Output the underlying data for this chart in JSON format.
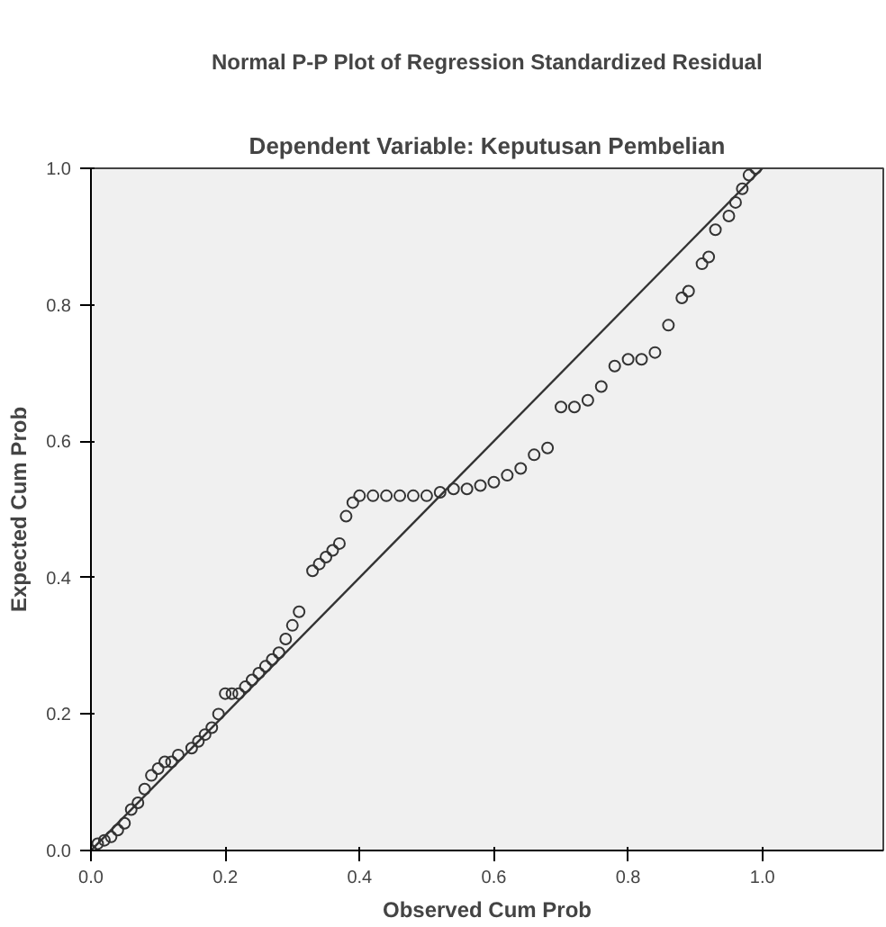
{
  "chart_data": {
    "type": "scatter",
    "title": "Normal P-P Plot of Regression Standardized Residual",
    "subtitle": "Dependent Variable: Keputusan Pembelian",
    "xlabel": "Observed Cum Prob",
    "ylabel": "Expected Cum Prob",
    "xlim": [
      0,
      1.18
    ],
    "ylim": [
      0,
      1
    ],
    "xticks": [
      {
        "value": 0,
        "label": "0.0"
      },
      {
        "value": 0.2,
        "label": "0.2"
      },
      {
        "value": 0.4,
        "label": "0.4"
      },
      {
        "value": 0.6,
        "label": "0.6"
      },
      {
        "value": 0.8,
        "label": "0.8"
      },
      {
        "value": 1,
        "label": "1.0"
      }
    ],
    "yticks": [
      {
        "value": 0,
        "label": "0.0"
      },
      {
        "value": 0.2,
        "label": "0.2"
      },
      {
        "value": 0.4,
        "label": "0.4"
      },
      {
        "value": 0.6,
        "label": "0.6"
      },
      {
        "value": 0.8,
        "label": "0.8"
      },
      {
        "value": 1,
        "label": "1.0"
      }
    ],
    "grid": false,
    "series": [
      {
        "marker": "circle",
        "color": "#333333",
        "x": [
          0,
          0.01,
          0.02,
          0.03,
          0.04,
          0.05,
          0.06,
          0.07,
          0.08,
          0.09,
          0.1,
          0.11,
          0.12,
          0.13,
          0.15,
          0.16,
          0.17,
          0.18,
          0.19,
          0.2,
          0.21,
          0.22,
          0.23,
          0.24,
          0.25,
          0.26,
          0.27,
          0.28,
          0.29,
          0.3,
          0.31,
          0.33,
          0.34,
          0.35,
          0.36,
          0.37,
          0.38,
          0.39,
          0.4,
          0.42,
          0.44,
          0.46,
          0.48,
          0.5,
          0.52,
          0.54,
          0.56,
          0.58,
          0.6,
          0.62,
          0.64,
          0.66,
          0.68,
          0.7,
          0.72,
          0.74,
          0.76,
          0.78,
          0.8,
          0.82,
          0.84,
          0.86,
          0.88,
          0.89,
          0.91,
          0.92,
          0.93,
          0.95,
          0.96,
          0.97,
          0.98,
          0.99
        ],
        "values": [
          0,
          0.01,
          0.015,
          0.02,
          0.03,
          0.04,
          0.06,
          0.07,
          0.09,
          0.11,
          0.12,
          0.13,
          0.13,
          0.14,
          0.15,
          0.16,
          0.17,
          0.18,
          0.2,
          0.23,
          0.23,
          0.23,
          0.24,
          0.25,
          0.26,
          0.27,
          0.28,
          0.29,
          0.31,
          0.33,
          0.35,
          0.41,
          0.42,
          0.43,
          0.44,
          0.45,
          0.49,
          0.51,
          0.52,
          0.52,
          0.52,
          0.52,
          0.52,
          0.52,
          0.525,
          0.53,
          0.53,
          0.535,
          0.54,
          0.55,
          0.56,
          0.58,
          0.59,
          0.65,
          0.65,
          0.66,
          0.68,
          0.71,
          0.72,
          0.72,
          0.73,
          0.77,
          0.81,
          0.82,
          0.86,
          0.87,
          0.91,
          0.93,
          0.95,
          0.97,
          0.99,
          1.0
        ]
      },
      {
        "type": "line",
        "marker": "none",
        "color": "#333333",
        "x": [
          0,
          1
        ],
        "values": [
          0,
          1
        ]
      }
    ]
  }
}
